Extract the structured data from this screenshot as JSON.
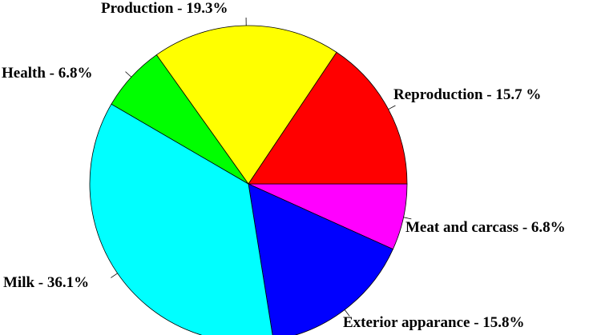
{
  "chart_data": {
    "type": "pie",
    "title": "",
    "slices": [
      {
        "label": "Meat and carcass - 6.8%",
        "value": 6.8,
        "color": "#FF00FF"
      },
      {
        "label": "Exterior apparance - 15.8%",
        "value": 15.8,
        "color": "#0000FF"
      },
      {
        "label": "Milk - 36.1%",
        "value": 36.1,
        "color": "#00FFFF"
      },
      {
        "label": "Health - 6.8%",
        "value": 6.8,
        "color": "#00FF00"
      },
      {
        "label": "Production - 19.3%",
        "value": 19.3,
        "color": "#FFFF00"
      },
      {
        "label": "Reproduction - 15.7 %",
        "value": 15.7,
        "color": "#FF0000"
      }
    ],
    "start": "3 o'clock",
    "direction": "clockwise",
    "legend": "none"
  }
}
